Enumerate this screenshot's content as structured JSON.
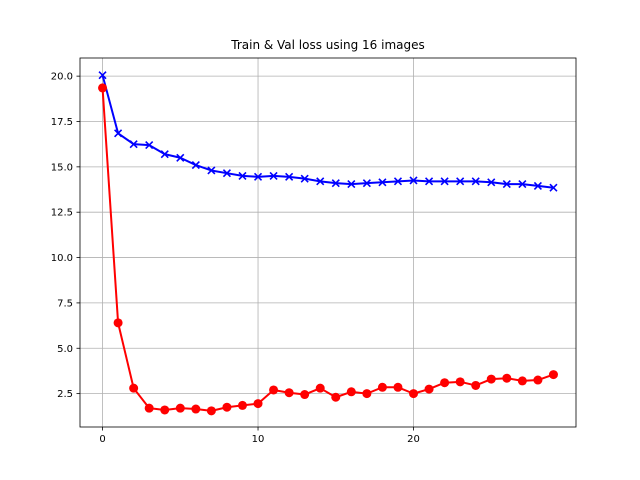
{
  "chart_data": {
    "type": "line",
    "title": "Train & Val loss using 16 images",
    "xlabel": "",
    "ylabel": "",
    "xlim": [
      -1.45,
      30.45
    ],
    "ylim": [
      0.66,
      21.0
    ],
    "xticks": [
      0,
      10,
      20
    ],
    "yticks": [
      2.5,
      5.0,
      7.5,
      10.0,
      12.5,
      15.0,
      17.5,
      20.0
    ],
    "grid": true,
    "x": [
      0,
      1,
      2,
      3,
      4,
      5,
      6,
      7,
      8,
      9,
      10,
      11,
      12,
      13,
      14,
      15,
      16,
      17,
      18,
      19,
      20,
      21,
      22,
      23,
      24,
      25,
      26,
      27,
      28,
      29
    ],
    "series": [
      {
        "color": "#0000ff",
        "marker": "x",
        "values": [
          20.05,
          16.85,
          16.25,
          16.2,
          15.7,
          15.5,
          15.1,
          14.8,
          14.65,
          14.5,
          14.45,
          14.5,
          14.45,
          14.35,
          14.2,
          14.1,
          14.05,
          14.1,
          14.15,
          14.2,
          14.25,
          14.2,
          14.2,
          14.2,
          14.2,
          14.15,
          14.05,
          14.05,
          13.95,
          13.85
        ]
      },
      {
        "color": "#ff0000",
        "marker": "o",
        "values": [
          19.35,
          6.4,
          2.8,
          1.7,
          1.6,
          1.7,
          1.65,
          1.55,
          1.75,
          1.85,
          1.95,
          2.7,
          2.55,
          2.45,
          2.8,
          2.3,
          2.6,
          2.5,
          2.85,
          2.85,
          2.5,
          2.75,
          3.1,
          3.15,
          2.95,
          3.3,
          3.35,
          3.2,
          3.25,
          3.55
        ]
      }
    ]
  }
}
